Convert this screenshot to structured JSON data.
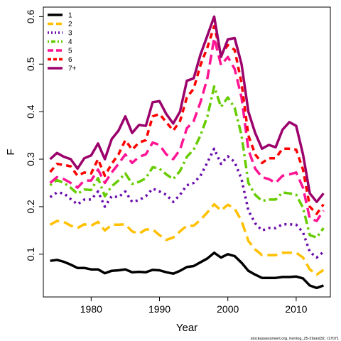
{
  "chart_data": {
    "type": "line",
    "xlabel": "Year",
    "ylabel": "F",
    "xlim": [
      1973,
      2015
    ],
    "ylim": [
      0.01,
      0.62
    ],
    "x_ticks": [
      1980,
      1990,
      2000,
      2010
    ],
    "y_ticks": [
      0.1,
      0.2,
      0.3,
      0.4,
      0.5,
      0.6
    ],
    "grid": false,
    "legend_position": "top-left",
    "footnote": "stockassessment.org, herring_25-29and32, r17071",
    "x": [
      1974,
      1975,
      1976,
      1977,
      1978,
      1979,
      1980,
      1981,
      1982,
      1983,
      1984,
      1985,
      1986,
      1987,
      1988,
      1989,
      1990,
      1991,
      1992,
      1993,
      1994,
      1995,
      1996,
      1997,
      1998,
      1999,
      2000,
      2001,
      2002,
      2003,
      2004,
      2005,
      2006,
      2007,
      2008,
      2009,
      2010,
      2011,
      2012,
      2013,
      2014
    ],
    "series": [
      {
        "name": "1",
        "color": "#000000",
        "dash": "solid",
        "values": [
          0.086,
          0.088,
          0.084,
          0.078,
          0.071,
          0.071,
          0.068,
          0.068,
          0.06,
          0.065,
          0.066,
          0.068,
          0.062,
          0.063,
          0.062,
          0.067,
          0.066,
          0.062,
          0.059,
          0.065,
          0.073,
          0.075,
          0.083,
          0.091,
          0.103,
          0.093,
          0.1,
          0.096,
          0.082,
          0.065,
          0.057,
          0.05,
          0.05,
          0.05,
          0.052,
          0.052,
          0.053,
          0.049,
          0.034,
          0.029,
          0.034
        ]
      },
      {
        "name": "2",
        "color": "#FFC000",
        "dash": "longdash",
        "values": [
          0.162,
          0.17,
          0.168,
          0.16,
          0.155,
          0.163,
          0.16,
          0.168,
          0.15,
          0.162,
          0.162,
          0.163,
          0.148,
          0.143,
          0.152,
          0.152,
          0.14,
          0.13,
          0.135,
          0.148,
          0.16,
          0.16,
          0.172,
          0.188,
          0.205,
          0.192,
          0.204,
          0.196,
          0.17,
          0.128,
          0.11,
          0.098,
          0.098,
          0.098,
          0.103,
          0.103,
          0.103,
          0.093,
          0.068,
          0.057,
          0.067
        ]
      },
      {
        "name": "3",
        "color": "#6A0DAD",
        "dash": "dotted",
        "values": [
          0.22,
          0.23,
          0.228,
          0.216,
          0.205,
          0.215,
          0.215,
          0.232,
          0.2,
          0.222,
          0.22,
          0.232,
          0.21,
          0.214,
          0.222,
          0.238,
          0.232,
          0.225,
          0.21,
          0.225,
          0.245,
          0.25,
          0.265,
          0.293,
          0.322,
          0.29,
          0.306,
          0.294,
          0.258,
          0.192,
          0.165,
          0.15,
          0.155,
          0.155,
          0.163,
          0.163,
          0.162,
          0.146,
          0.105,
          0.093,
          0.105
        ]
      },
      {
        "name": "4",
        "color": "#66CC00",
        "dash": "dotdash",
        "values": [
          0.245,
          0.256,
          0.25,
          0.24,
          0.227,
          0.236,
          0.235,
          0.26,
          0.222,
          0.243,
          0.255,
          0.27,
          0.248,
          0.252,
          0.26,
          0.283,
          0.28,
          0.268,
          0.258,
          0.275,
          0.305,
          0.32,
          0.35,
          0.39,
          0.453,
          0.41,
          0.43,
          0.408,
          0.35,
          0.25,
          0.225,
          0.212,
          0.215,
          0.215,
          0.23,
          0.228,
          0.225,
          0.198,
          0.14,
          0.135,
          0.155
        ]
      },
      {
        "name": "5",
        "color": "#FF1493",
        "dash": "longdash",
        "values": [
          0.25,
          0.262,
          0.258,
          0.25,
          0.24,
          0.255,
          0.255,
          0.278,
          0.25,
          0.272,
          0.29,
          0.31,
          0.292,
          0.305,
          0.31,
          0.335,
          0.33,
          0.31,
          0.3,
          0.32,
          0.365,
          0.38,
          0.42,
          0.47,
          0.555,
          0.498,
          0.515,
          0.49,
          0.43,
          0.32,
          0.28,
          0.262,
          0.258,
          0.25,
          0.265,
          0.268,
          0.272,
          0.24,
          0.175,
          0.17,
          0.192
        ]
      },
      {
        "name": "6",
        "color": "#FF0000",
        "dash": "dashed",
        "values": [
          0.273,
          0.29,
          0.288,
          0.285,
          0.265,
          0.272,
          0.27,
          0.3,
          0.265,
          0.29,
          0.31,
          0.34,
          0.32,
          0.335,
          0.34,
          0.39,
          0.395,
          0.378,
          0.36,
          0.38,
          0.43,
          0.448,
          0.498,
          0.535,
          0.58,
          0.52,
          0.54,
          0.53,
          0.46,
          0.35,
          0.31,
          0.292,
          0.302,
          0.302,
          0.322,
          0.322,
          0.32,
          0.278,
          0.2,
          0.185,
          0.205
        ]
      },
      {
        "name": "7+",
        "color": "#9B006B",
        "dash": "solid",
        "values": [
          0.3,
          0.313,
          0.305,
          0.3,
          0.28,
          0.302,
          0.308,
          0.333,
          0.3,
          0.342,
          0.36,
          0.39,
          0.355,
          0.372,
          0.37,
          0.42,
          0.422,
          0.395,
          0.375,
          0.4,
          0.465,
          0.47,
          0.52,
          0.56,
          0.6,
          0.515,
          0.552,
          0.555,
          0.5,
          0.4,
          0.355,
          0.322,
          0.33,
          0.325,
          0.362,
          0.378,
          0.37,
          0.31,
          0.228,
          0.21,
          0.228
        ]
      }
    ]
  }
}
